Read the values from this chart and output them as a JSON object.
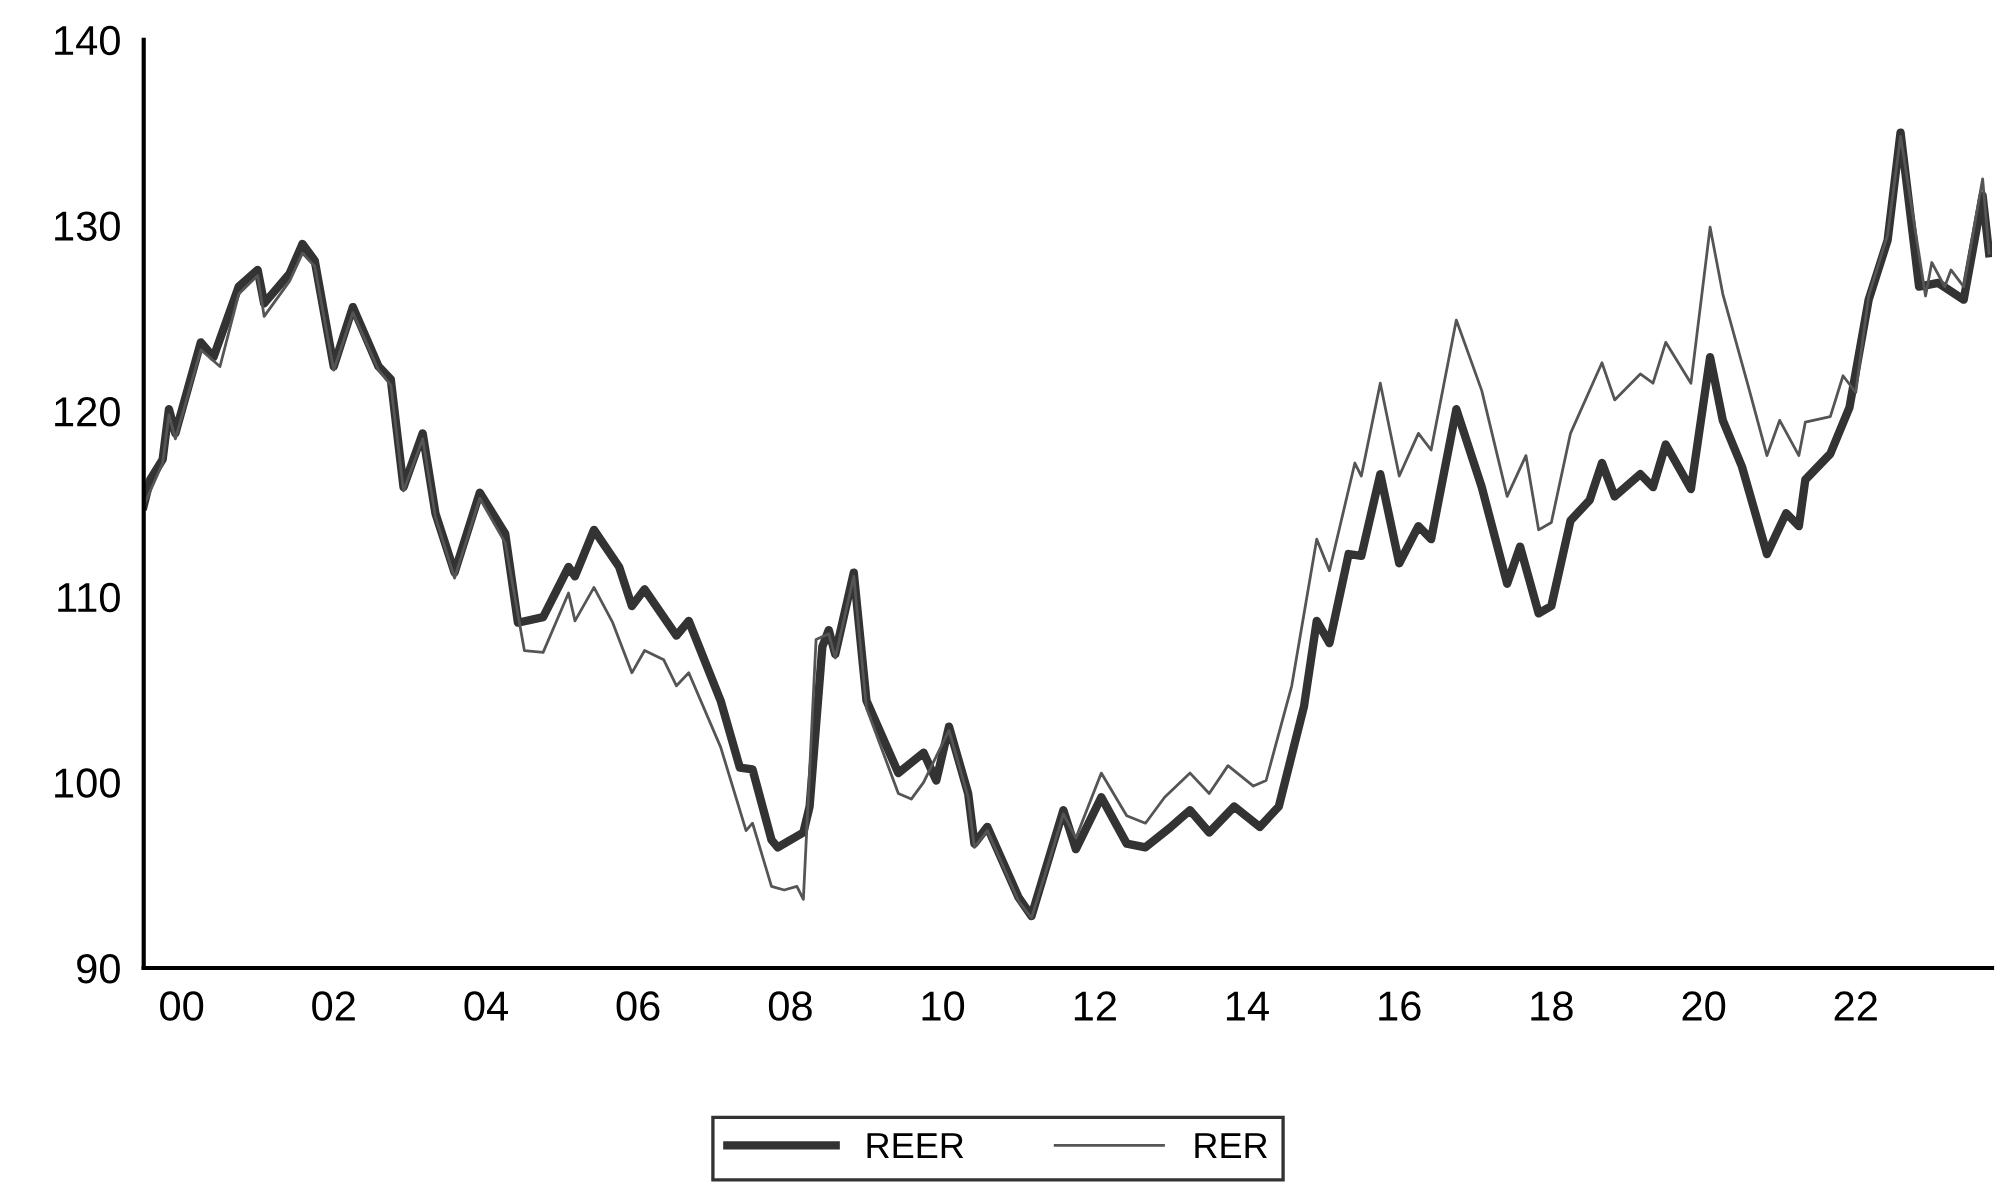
{
  "chart_data": {
    "type": "line",
    "ylim": [
      90,
      140
    ],
    "yticks": [
      90,
      100,
      110,
      120,
      130,
      140
    ],
    "xlim": [
      "2000-01-01",
      "2024-04-15"
    ],
    "xticks": [
      {
        "value": "2000-07-01",
        "label": "00"
      },
      {
        "value": "2002-07-01",
        "label": "02"
      },
      {
        "value": "2004-07-01",
        "label": "04"
      },
      {
        "value": "2006-07-01",
        "label": "06"
      },
      {
        "value": "2008-07-01",
        "label": "08"
      },
      {
        "value": "2010-07-01",
        "label": "10"
      },
      {
        "value": "2012-07-01",
        "label": "12"
      },
      {
        "value": "2014-07-01",
        "label": "14"
      },
      {
        "value": "2016-07-01",
        "label": "16"
      },
      {
        "value": "2018-07-01",
        "label": "18"
      },
      {
        "value": "2020-07-01",
        "label": "20"
      },
      {
        "value": "2022-07-01",
        "label": "22"
      }
    ],
    "grid": false,
    "legend": "bottom",
    "marker": "none",
    "line_style": "solid",
    "series": [
      {
        "name": "REER",
        "color": "#333333",
        "x": [
          "2000-01",
          "2000-02",
          "2000-04",
          "2000-05",
          "2000-06",
          "2000-10",
          "2000-12",
          "2001-04",
          "2001-07",
          "2001-08",
          "2001-12",
          "2002-02",
          "2002-04",
          "2002-07",
          "2002-10",
          "2003-02",
          "2003-04",
          "2003-06",
          "2003-09",
          "2003-11",
          "2004-02",
          "2004-06",
          "2004-10",
          "2004-12",
          "2005-04",
          "2005-08",
          "2005-09",
          "2005-12",
          "2006-04",
          "2006-06",
          "2006-08",
          "2007-01",
          "2007-03",
          "2007-08",
          "2007-11",
          "2008-01",
          "2008-04",
          "2008-05",
          "2008-09",
          "2008-10",
          "2008-12",
          "2009-01",
          "2009-02",
          "2009-05",
          "2009-07",
          "2009-12",
          "2010-04",
          "2010-06",
          "2010-08",
          "2010-11",
          "2010-12",
          "2011-02",
          "2011-07",
          "2011-09",
          "2011-12",
          "2012-02",
          "2012-04",
          "2012-08",
          "2012-12",
          "2013-03",
          "2013-07",
          "2013-10",
          "2014-01",
          "2014-05",
          "2014-09",
          "2014-12",
          "2015-04",
          "2015-06",
          "2015-08",
          "2015-11",
          "2016-01",
          "2016-04",
          "2016-07",
          "2016-10",
          "2016-12",
          "2017-04",
          "2017-08",
          "2017-12",
          "2018-02",
          "2018-05",
          "2018-07",
          "2018-10",
          "2019-01",
          "2019-03",
          "2019-05",
          "2019-09",
          "2019-11",
          "2020-01",
          "2020-05",
          "2020-08",
          "2020-10",
          "2021-01",
          "2021-05",
          "2021-08",
          "2021-10",
          "2021-11",
          "2022-03",
          "2022-06",
          "2022-09",
          "2022-12",
          "2023-02",
          "2023-05",
          "2023-08",
          "2023-12",
          "2024-03",
          "2024-04"
        ],
        "values": [
          114.9,
          116.3,
          117.4,
          120.1,
          118.8,
          123.7,
          122.9,
          126.7,
          127.6,
          125.8,
          127.4,
          129.0,
          128.1,
          122.4,
          125.6,
          122.4,
          121.7,
          115.9,
          118.8,
          114.5,
          111.3,
          115.6,
          113.4,
          108.6,
          108.9,
          111.6,
          111.1,
          113.6,
          111.6,
          109.5,
          110.4,
          107.9,
          108.7,
          104.4,
          100.8,
          100.7,
          96.9,
          96.5,
          97.3,
          98.7,
          107.3,
          108.2,
          106.9,
          111.3,
          104.4,
          100.5,
          101.6,
          100.1,
          103.0,
          99.4,
          96.7,
          97.6,
          93.8,
          92.8,
          96.2,
          98.5,
          96.4,
          99.2,
          96.7,
          96.5,
          97.6,
          98.5,
          97.3,
          98.7,
          97.6,
          98.7,
          104.1,
          108.7,
          107.5,
          112.3,
          112.2,
          116.6,
          111.8,
          113.8,
          113.1,
          120.1,
          115.9,
          110.7,
          112.7,
          109.1,
          109.5,
          114.1,
          115.2,
          117.2,
          115.4,
          116.6,
          115.9,
          118.2,
          115.8,
          122.9,
          119.5,
          117.0,
          112.3,
          114.5,
          113.8,
          116.3,
          117.7,
          120.2,
          126.0,
          129.2,
          135.0,
          126.7,
          126.9,
          126.0,
          131.6,
          128.5
        ]
      },
      {
        "name": "RER",
        "color": "#555555",
        "x": [
          "2000-01",
          "2000-04",
          "2000-05",
          "2000-06",
          "2000-10",
          "2001-01",
          "2001-04",
          "2001-07",
          "2001-08",
          "2001-12",
          "2002-02",
          "2002-04",
          "2002-07",
          "2002-10",
          "2003-02",
          "2003-04",
          "2003-06",
          "2003-09",
          "2003-11",
          "2004-02",
          "2004-06",
          "2004-10",
          "2005-01",
          "2005-04",
          "2005-08",
          "2005-09",
          "2005-12",
          "2006-03",
          "2006-06",
          "2006-08",
          "2006-11",
          "2007-01",
          "2007-03",
          "2007-08",
          "2007-12",
          "2008-01",
          "2008-04",
          "2008-06",
          "2008-08",
          "2008-09",
          "2008-11",
          "2009-01",
          "2009-02",
          "2009-05",
          "2009-07",
          "2009-12",
          "2010-02",
          "2010-04",
          "2010-08",
          "2010-11",
          "2010-12",
          "2011-02",
          "2011-07",
          "2011-09",
          "2011-12",
          "2012-02",
          "2012-04",
          "2012-08",
          "2012-12",
          "2013-03",
          "2013-06",
          "2013-10",
          "2014-01",
          "2014-04",
          "2014-08",
          "2014-10",
          "2015-02",
          "2015-06",
          "2015-08",
          "2015-12",
          "2016-01",
          "2016-04",
          "2016-07",
          "2016-10",
          "2016-12",
          "2017-04",
          "2017-08",
          "2017-12",
          "2018-03",
          "2018-05",
          "2018-07",
          "2018-10",
          "2019-03",
          "2019-05",
          "2019-09",
          "2019-11",
          "2020-01",
          "2020-05",
          "2020-08",
          "2020-10",
          "2021-02",
          "2021-05",
          "2021-07",
          "2021-10",
          "2021-11",
          "2022-03",
          "2022-05",
          "2022-07",
          "2022-09",
          "2022-12",
          "2023-02",
          "2023-06",
          "2023-07",
          "2023-09",
          "2023-10",
          "2023-12",
          "2024-03",
          "2024-04"
        ],
        "values": [
          114.9,
          117.2,
          119.8,
          118.5,
          123.3,
          122.4,
          126.3,
          127.3,
          125.1,
          127.0,
          128.5,
          127.8,
          122.2,
          125.3,
          122.2,
          121.4,
          115.7,
          118.5,
          114.3,
          111.0,
          115.3,
          112.9,
          107.1,
          107.0,
          110.2,
          108.7,
          110.5,
          108.6,
          105.9,
          107.1,
          106.6,
          105.2,
          105.9,
          101.9,
          97.4,
          97.8,
          94.4,
          94.2,
          94.4,
          93.7,
          107.7,
          108.0,
          106.7,
          111.1,
          104.0,
          99.4,
          99.1,
          100.0,
          102.8,
          99.2,
          96.5,
          97.4,
          93.6,
          92.7,
          96.0,
          98.3,
          97.0,
          100.5,
          98.2,
          97.8,
          99.2,
          100.5,
          99.4,
          100.9,
          99.8,
          100.1,
          105.2,
          113.1,
          111.4,
          117.2,
          116.5,
          121.5,
          116.5,
          118.8,
          117.9,
          124.9,
          121.1,
          115.4,
          117.6,
          113.6,
          114.0,
          118.8,
          122.6,
          120.6,
          122.0,
          121.5,
          123.7,
          121.5,
          129.9,
          126.3,
          121.3,
          117.6,
          119.5,
          117.6,
          119.4,
          119.7,
          121.9,
          121.0,
          126.2,
          129.5,
          134.8,
          126.2,
          128.0,
          126.7,
          127.6,
          126.7,
          132.5,
          128.5
        ]
      }
    ]
  }
}
